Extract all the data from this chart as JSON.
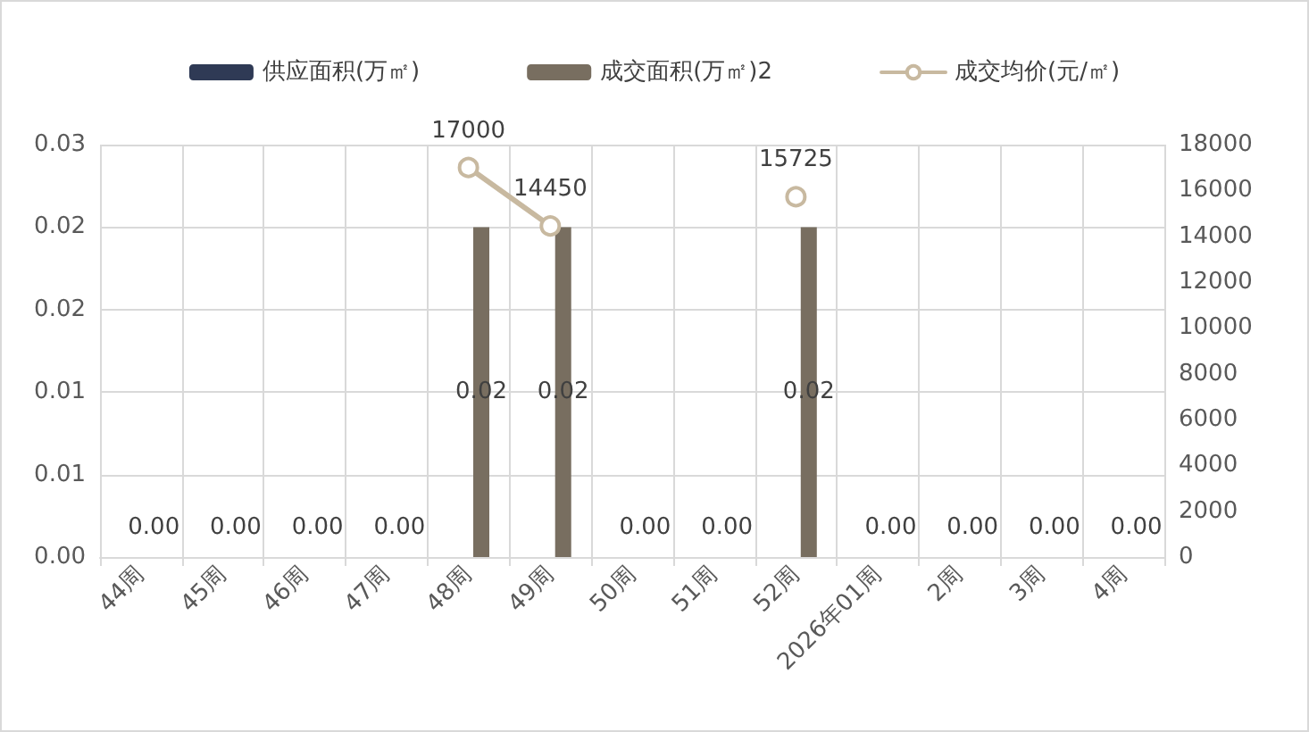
{
  "chart_data": {
    "type": "bar",
    "categories": [
      "44周",
      "45周",
      "46周",
      "47周",
      "48周",
      "49周",
      "50周",
      "51周",
      "52周",
      "2026年01周",
      "2周",
      "3周",
      "4周"
    ],
    "series": [
      {
        "name": "供应面积(万㎡)",
        "color": "#2f3a55",
        "values": [
          0,
          0,
          0,
          0,
          0,
          0,
          0,
          0,
          0,
          0,
          0,
          0,
          0
        ]
      },
      {
        "name": "成交面积(万㎡)2",
        "color": "#786e60",
        "values": [
          0,
          0,
          0,
          0,
          0.02,
          0.02,
          0,
          0,
          0.02,
          0,
          0,
          0,
          0
        ],
        "value_labels": [
          "0.00",
          "0.00",
          "0.00",
          "0.00",
          "0.02",
          "0.02",
          "0.00",
          "0.00",
          "0.02",
          "0.00",
          "0.00",
          "0.00",
          "0.00"
        ]
      },
      {
        "name": "成交均价(元/㎡)",
        "type": "line",
        "axis": "y2",
        "color": "#c8b9a0",
        "marker": "circle",
        "values": [
          null,
          null,
          null,
          null,
          17000,
          14450,
          null,
          null,
          15725,
          null,
          null,
          null,
          null
        ],
        "value_labels": [
          null,
          null,
          null,
          null,
          "17000",
          "14450",
          null,
          null,
          "15725",
          null,
          null,
          null,
          null
        ]
      }
    ],
    "ylim": [
      0,
      0.025
    ],
    "yticks": [
      {
        "value": 0,
        "label": "0.00"
      },
      {
        "value": 0.005,
        "label": "0.01"
      },
      {
        "value": 0.01,
        "label": "0.01"
      },
      {
        "value": 0.015,
        "label": "0.02"
      },
      {
        "value": 0.02,
        "label": "0.02"
      },
      {
        "value": 0.025,
        "label": "0.03"
      }
    ],
    "y2lim": [
      0,
      18000
    ],
    "y2ticks": [
      0,
      2000,
      4000,
      6000,
      8000,
      10000,
      12000,
      14000,
      16000,
      18000
    ],
    "grid": true,
    "legend": "top"
  }
}
